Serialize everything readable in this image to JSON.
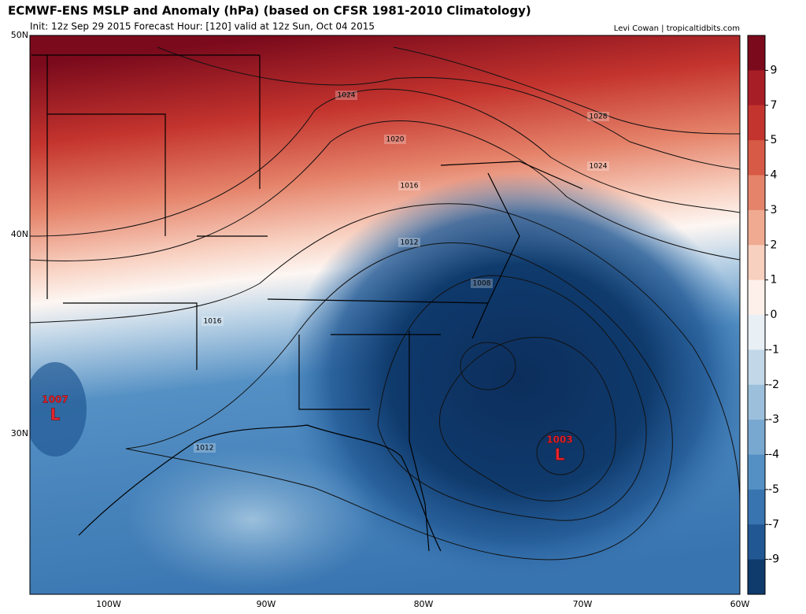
{
  "header": {
    "title": "ECMWF-ENS MSLP and Anomaly (hPa) (based on CFSR 1981-2010 Climatology)",
    "subtitle": "Init: 12z Sep 29 2015   Forecast Hour: [120]   valid at 12z Sun, Oct 04 2015",
    "credit": "Levi Cowan | tropicaltidbits.com"
  },
  "map": {
    "lat_labels": [
      "50N",
      "40N",
      "30N"
    ],
    "lon_labels": [
      "100W",
      "90W",
      "80W",
      "70W",
      "60W"
    ],
    "contour_labels": [
      1024,
      1020,
      1016,
      1012,
      1008,
      1016,
      1012,
      1028,
      1024
    ],
    "lows": [
      {
        "symbol": "L",
        "pressure": 1007
      },
      {
        "symbol": "L",
        "pressure": 1003
      }
    ]
  },
  "colorbar": {
    "ticks": [
      9,
      7,
      5,
      4,
      3,
      2,
      1,
      0,
      -1,
      -2,
      -3,
      -4,
      -5,
      -7,
      -9
    ],
    "colors": [
      "#7a0a1c",
      "#a81e26",
      "#c4342e",
      "#d65a45",
      "#e5836a",
      "#f0aa92",
      "#f8d0c0",
      "#fdf0ea",
      "#e8f0f6",
      "#c2d7e8",
      "#9cc0dc",
      "#78a8d0",
      "#5490c4",
      "#3874b0",
      "#215894",
      "#0f3a6c"
    ]
  }
}
